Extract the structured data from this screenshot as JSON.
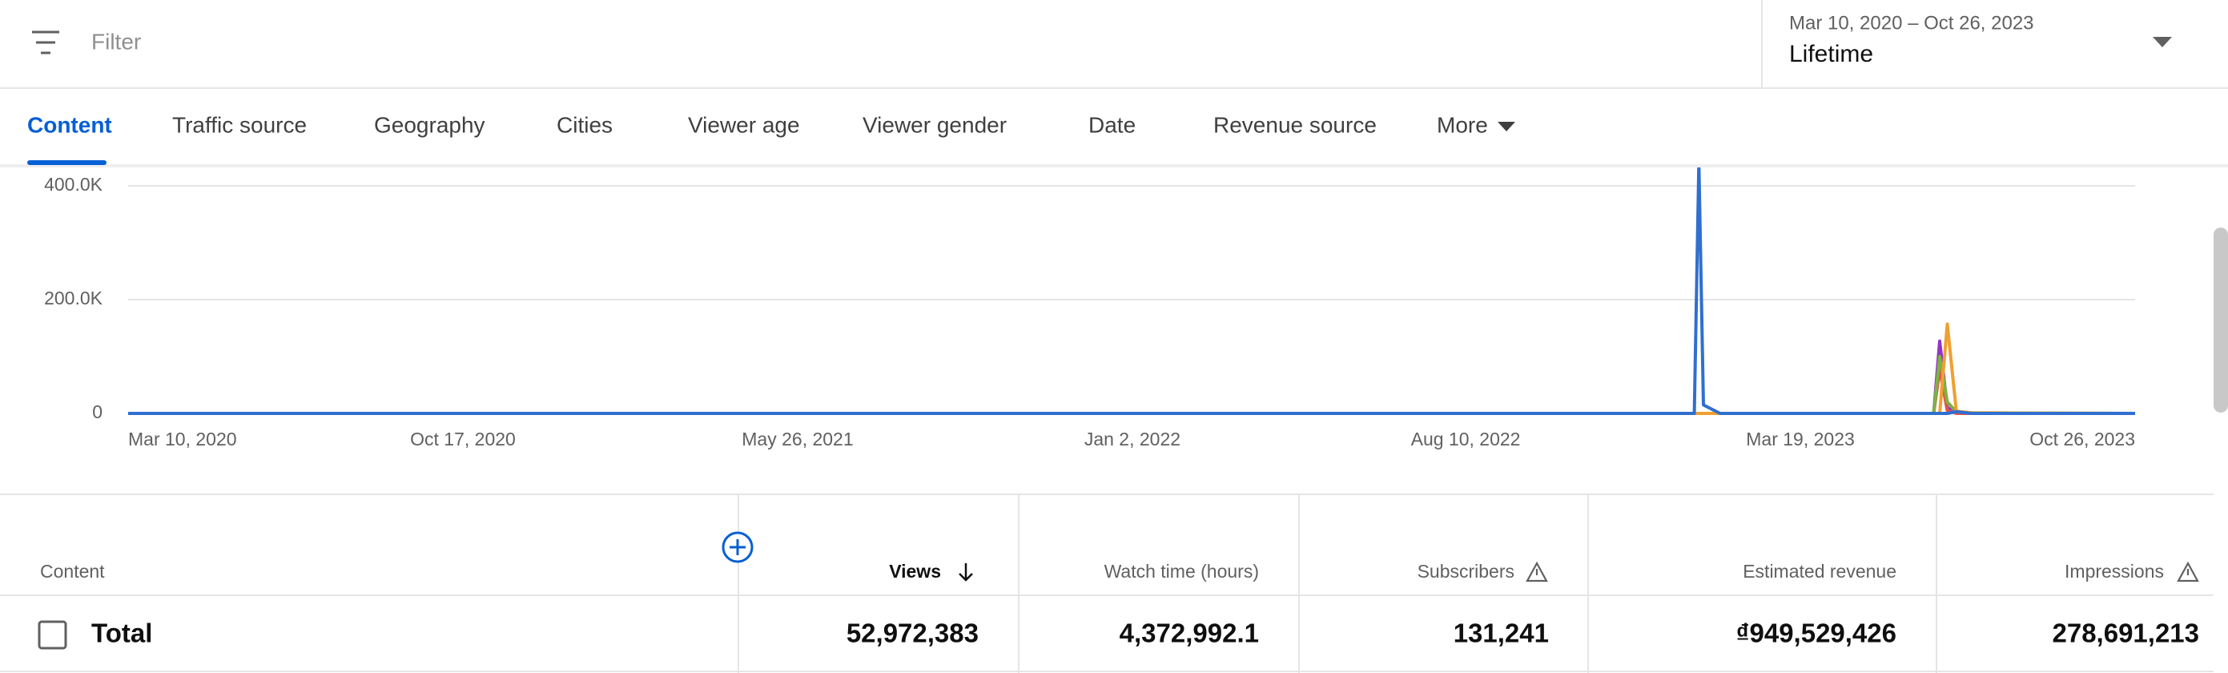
{
  "filter": {
    "placeholder": "Filter"
  },
  "date_range": {
    "range": "Mar 10, 2020 – Oct 26, 2023",
    "label": "Lifetime"
  },
  "tabs": [
    "Content",
    "Traffic source",
    "Geography",
    "Cities",
    "Viewer age",
    "Viewer gender",
    "Date",
    "Revenue source",
    "More"
  ],
  "chart_data": {
    "type": "line",
    "x": [
      "2020-03-10",
      "2023-01-08",
      "2023-01-11",
      "2023-01-14",
      "2023-01-25",
      "2023-06-15",
      "2023-06-19",
      "2023-06-24",
      "2023-06-30",
      "2023-07-10",
      "2023-10-26"
    ],
    "series": [
      {
        "color": "#9334c9",
        "values": [
          0,
          0,
          0,
          0,
          0,
          0,
          127000,
          10000,
          2000,
          0,
          0
        ]
      },
      {
        "color": "#e5534b",
        "values": [
          0,
          0,
          0,
          0,
          0,
          0,
          77000,
          5000,
          0,
          0,
          0
        ]
      },
      {
        "color": "#7cb342",
        "values": [
          0,
          0,
          0,
          0,
          0,
          0,
          100000,
          20000,
          3000,
          1000,
          0
        ]
      },
      {
        "color": "#f0a030",
        "values": [
          0,
          0,
          0,
          0,
          0,
          0,
          0,
          157000,
          4000,
          1000,
          0
        ]
      },
      {
        "color": "#2f6fd0",
        "values": [
          0,
          0,
          440000,
          15000,
          0,
          0,
          0,
          0,
          3000,
          0,
          0
        ]
      }
    ],
    "xlim": [
      "2020-03-10",
      "2023-10-26"
    ],
    "xticks": [
      {
        "value": "2020-03-10",
        "label": "Mar 10, 2020"
      },
      {
        "value": "2020-10-17",
        "label": "Oct 17, 2020"
      },
      {
        "value": "2021-05-26",
        "label": "May 26, 2021"
      },
      {
        "value": "2022-01-02",
        "label": "Jan 2, 2022"
      },
      {
        "value": "2022-08-10",
        "label": "Aug 10, 2022"
      },
      {
        "value": "2023-03-19",
        "label": "Mar 19, 2023"
      },
      {
        "value": "2023-10-26",
        "label": "Oct 26, 2023"
      }
    ],
    "ylim": [
      0,
      400000
    ],
    "yticks": [
      0,
      {
        "value": 200000,
        "label": "200.0K"
      },
      {
        "value": 400000,
        "label": "400.0K"
      }
    ],
    "grid": true
  },
  "table": {
    "header": [
      "Content",
      "Views",
      "Watch time (hours)",
      "Subscribers",
      "Estimated revenue",
      "Impressions"
    ],
    "total": {
      "label": "Total",
      "values": [
        "52,972,383",
        "4,372,992.1",
        "131,241",
        "₫949,529,426",
        "278,691,213"
      ]
    }
  }
}
